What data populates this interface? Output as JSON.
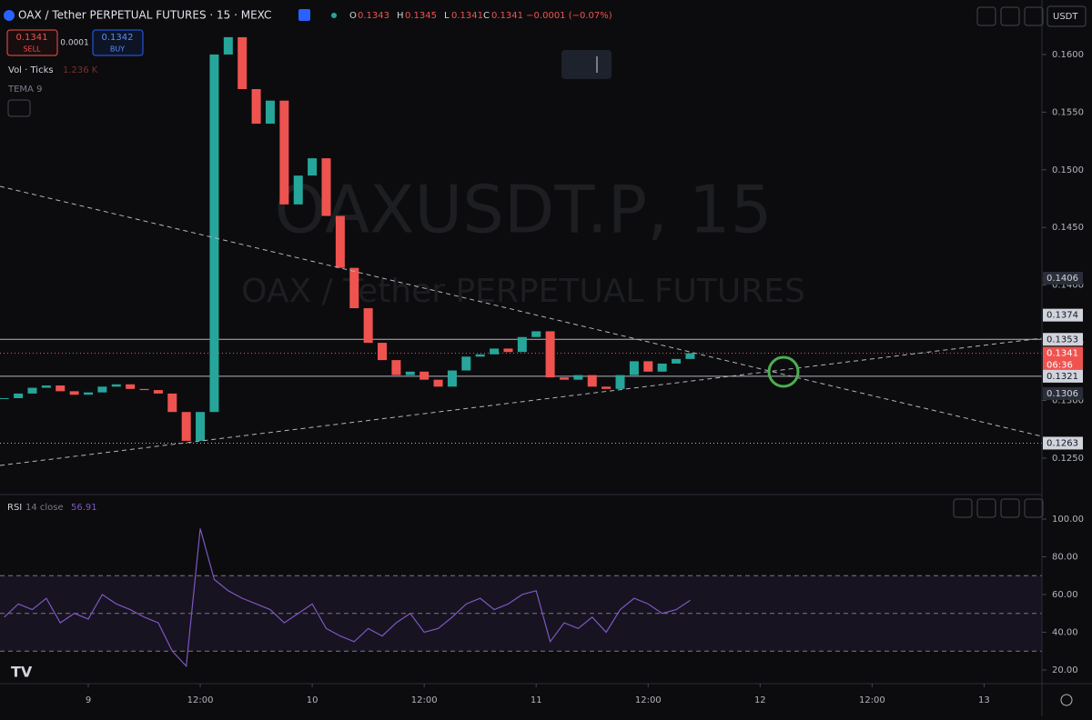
{
  "header": {
    "symbol": "OAX / Tether PERPETUAL FUTURES · 15 · MEXC",
    "ohlc": [
      {
        "label": "O",
        "value": "0.1343"
      },
      {
        "label": "H",
        "value": "0.1345"
      },
      {
        "label": "L",
        "value": "0.1341"
      },
      {
        "label": "C",
        "value": "0.1341 −0.0001 (−0.07%)"
      }
    ],
    "currency": "USDT"
  },
  "trade": {
    "sell_price": "0.1341",
    "sell": "SELL",
    "spread": "0.0001",
    "buy_price": "0.1342",
    "buy": "BUY"
  },
  "indicators": {
    "volume": "Vol · Ticks",
    "volume_value": "1.236 K",
    "tema": "TEMA 9",
    "rsi": "RSI",
    "rsi_params": "14 close",
    "rsi_value": "56.91"
  },
  "watermark": {
    "line1": "OAXUSDT.P, 15",
    "line2": "OAX / Tether PERPETUAL FUTURES"
  },
  "countdown": "06:36",
  "chart_data": [
    {
      "type": "candlestick",
      "up_color": "#26a69a",
      "down_color": "#ef5350",
      "x": [
        -9,
        -7.5,
        -6,
        -4.5,
        -3,
        -1.5,
        0,
        1.5,
        3,
        4.5,
        6,
        7.5,
        9,
        10.5,
        12,
        13.5,
        15,
        16.5,
        18,
        19.5,
        21,
        22.5,
        24,
        25.5,
        27,
        28.5,
        30,
        31.5,
        33,
        34.5,
        36,
        37.5,
        39,
        40.5,
        42,
        43.5,
        45,
        46.5,
        48,
        49.5,
        51,
        52.5,
        54,
        55.5,
        57,
        58.5,
        60,
        61.5,
        63,
        64.5
      ],
      "values": [
        0.1302,
        0.1306,
        0.1311,
        0.1313,
        0.1308,
        0.1305,
        0.1307,
        0.1312,
        0.1314,
        0.131,
        0.1309,
        0.1306,
        0.129,
        0.1265,
        0.129,
        0.16,
        0.1615,
        0.157,
        0.154,
        0.156,
        0.147,
        0.1495,
        0.151,
        0.146,
        0.1415,
        0.138,
        0.135,
        0.1335,
        0.1322,
        0.1325,
        0.1318,
        0.1312,
        0.1326,
        0.1338,
        0.134,
        0.1345,
        0.1342,
        0.1355,
        0.136,
        0.132,
        0.1318,
        0.1322,
        0.1312,
        0.131,
        0.1322,
        0.1334,
        0.1325,
        0.1332,
        0.1336,
        0.1341
      ],
      "xlim": [
        -9.46,
        102.2
      ],
      "xticks": [
        {
          "value": 0,
          "label": "9"
        },
        {
          "value": 12,
          "label": "12:00"
        },
        {
          "value": 24,
          "label": "10"
        },
        {
          "value": 36,
          "label": "12:00"
        },
        {
          "value": 48,
          "label": "11"
        },
        {
          "value": 60,
          "label": "12:00"
        },
        {
          "value": 72,
          "label": "12"
        },
        {
          "value": 84,
          "label": "12:00"
        },
        {
          "value": 96,
          "label": "13"
        }
      ],
      "ylim": [
        0.122,
        0.16236
      ],
      "yticks": [
        {
          "value": 0.125,
          "label": "0.1250"
        },
        {
          "value": 0.13,
          "label": "0.1300"
        },
        {
          "value": 0.135,
          "label": "0.1350"
        },
        {
          "value": 0.14,
          "label": "0.1400"
        },
        {
          "value": 0.145,
          "label": "0.1450"
        },
        {
          "value": 0.15,
          "label": "0.1500"
        },
        {
          "value": 0.155,
          "label": "0.1550"
        },
        {
          "value": 0.16,
          "label": "0.1600"
        }
      ],
      "price_labels": [
        {
          "value": 0.1406,
          "label": "0.1406",
          "style": "grey"
        },
        {
          "value": 0.1374,
          "label": "0.1374",
          "style": "light"
        },
        {
          "value": 0.1353,
          "label": "0.1353",
          "style": "light"
        },
        {
          "value": 0.1341,
          "label": "0.1341",
          "style": "red"
        },
        {
          "value": 0.1321,
          "label": "0.1321",
          "style": "light"
        },
        {
          "value": 0.1306,
          "label": "0.1306",
          "style": "grey"
        },
        {
          "value": 0.1263,
          "label": "0.1263",
          "style": "light"
        }
      ],
      "hlines": [
        {
          "value": 0.1353,
          "style": "solid"
        },
        {
          "value": 0.1321,
          "style": "solid"
        },
        {
          "value": 0.1341,
          "style": "red-dotted"
        },
        {
          "value": 0.1263,
          "style": "dotted"
        }
      ]
    },
    {
      "type": "line",
      "color": "#7e57c2",
      "x": [
        -9,
        -7.5,
        -6,
        -4.5,
        -3,
        -1.5,
        0,
        1.5,
        3,
        4.5,
        6,
        7.5,
        9,
        10.5,
        12,
        13.5,
        15,
        16.5,
        18,
        19.5,
        21,
        22.5,
        24,
        25.5,
        27,
        28.5,
        30,
        31.5,
        33,
        34.5,
        36,
        37.5,
        39,
        40.5,
        42,
        43.5,
        45,
        46.5,
        48,
        49.5,
        51,
        52.5,
        54,
        55.5,
        57,
        58.5,
        60,
        61.5,
        63,
        64.5
      ],
      "values": [
        48,
        55,
        52,
        58,
        45,
        50,
        47,
        60,
        55,
        52,
        48,
        45,
        30,
        22,
        95,
        68,
        62,
        58,
        55,
        52,
        45,
        50,
        55,
        42,
        38,
        35,
        42,
        38,
        45,
        50,
        40,
        42,
        48,
        55,
        58,
        52,
        55,
        60,
        62,
        35,
        45,
        42,
        48,
        40,
        52,
        58,
        55,
        50,
        52,
        56.91
      ],
      "xlim": [
        -9.46,
        102.2
      ],
      "ylim": [
        13.7,
        111.1
      ],
      "yticks": [
        {
          "value": 20,
          "label": "20.00"
        },
        {
          "value": 40,
          "label": "40.00"
        },
        {
          "value": 60,
          "label": "60.00"
        },
        {
          "value": 80,
          "label": "80.00"
        },
        {
          "value": 100,
          "label": "100.00"
        }
      ],
      "levels": [
        70,
        50,
        30
      ]
    }
  ]
}
